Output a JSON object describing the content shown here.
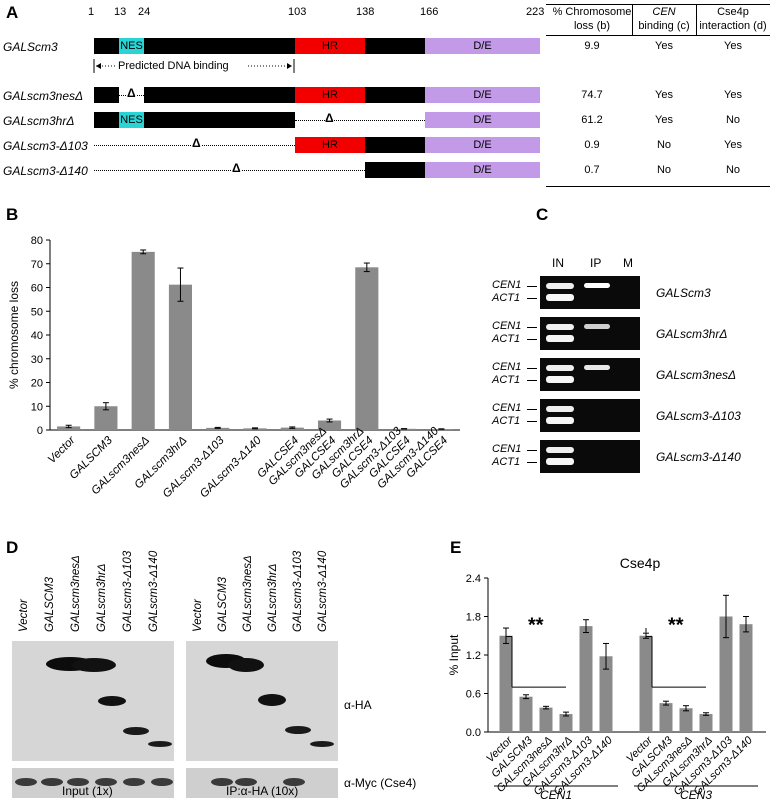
{
  "panels": {
    "a": "A",
    "b": "B",
    "c": "C",
    "d": "D",
    "e": "E"
  },
  "panelA": {
    "positions": [
      "1",
      "13",
      "24",
      "103",
      "138",
      "166",
      "223"
    ],
    "domains": {
      "nes": "NES",
      "hr": "HR",
      "de": "D/E",
      "delta": "Δ"
    },
    "dna_binding_label": "Predicted DNA binding",
    "table_headers": {
      "col1_a": "% Chromosome",
      "col1_b": "loss (b)",
      "col2_a": "CEN",
      "col2_b": "binding (c)",
      "col3_a": "Cse4p",
      "col3_b": "interaction (d)"
    },
    "rows": [
      {
        "name": "GALScm3",
        "loss": "9.9",
        "cen": "Yes",
        "cse4": "Yes"
      },
      {
        "name": "GALscm3nesΔ",
        "loss": "74.7",
        "cen": "Yes",
        "cse4": "Yes"
      },
      {
        "name": "GALscm3hrΔ",
        "loss": "61.2",
        "cen": "Yes",
        "cse4": "No"
      },
      {
        "name": "GALscm3-Δ103",
        "loss": "0.9",
        "cen": "No",
        "cse4": "Yes"
      },
      {
        "name": "GALscm3-Δ140",
        "loss": "0.7",
        "cen": "No",
        "cse4": "No"
      }
    ]
  },
  "chart_data": [
    {
      "type": "bar",
      "panel": "B",
      "ylabel": "% chromosome loss",
      "ylim": [
        0,
        80
      ],
      "yticks": [
        0,
        10,
        20,
        30,
        40,
        50,
        60,
        70,
        80
      ],
      "categories": [
        "Vector",
        "GALSCM3",
        "GALscm3nesΔ",
        "GALscm3hrΔ",
        "GALscm3-Δ103",
        "GALscm3-Δ140",
        "GALCSE4",
        "GALscm3nesΔ GALCSE4",
        "GALscm3hrΔ GALCSE4",
        "GALscm3-Δ103 GALCSE4",
        "GALscm3-Δ140 GALCSE4"
      ],
      "category_lines": [
        [
          "Vector"
        ],
        [
          "GALSCM3"
        ],
        [
          "GALscm3nesΔ"
        ],
        [
          "GALscm3hrΔ"
        ],
        [
          "GALscm3-Δ103"
        ],
        [
          "GALscm3-Δ140"
        ],
        [
          "GALCSE4"
        ],
        [
          "GALscm3nesΔ",
          "GALCSE4"
        ],
        [
          "GALscm3hrΔ",
          "GALCSE4"
        ],
        [
          "GALscm3-Δ103",
          "GALCSE4"
        ],
        [
          "GALscm3-Δ140",
          "GALCSE4"
        ]
      ],
      "values": [
        1.5,
        10.0,
        75.0,
        61.2,
        0.9,
        0.7,
        1.0,
        4.0,
        68.5,
        0.5,
        0.4
      ],
      "errors": [
        0.5,
        1.5,
        0.8,
        7.0,
        0.2,
        0.2,
        0.3,
        0.6,
        1.8,
        0.1,
        0.1
      ]
    },
    {
      "type": "bar",
      "panel": "E",
      "title": "Cse4p",
      "ylabel": "% Input",
      "ylim": [
        0,
        2.4
      ],
      "yticks": [
        0.0,
        0.6,
        1.2,
        1.8,
        2.4
      ],
      "ytick_labels": [
        "0.0",
        "0.6",
        "1.2",
        "1.8",
        "2.4"
      ],
      "categories": [
        "Vector",
        "GALSCM3",
        "GALscm3nesΔ",
        "GALscm3hrΔ",
        "GALscm3-Δ103",
        "GALscm3-Δ140"
      ],
      "groups": [
        "CEN1",
        "CEN3"
      ],
      "series": [
        {
          "group": "CEN1",
          "values": [
            1.5,
            0.55,
            0.38,
            0.28,
            1.65,
            1.18
          ],
          "errors": [
            0.12,
            0.03,
            0.02,
            0.03,
            0.1,
            0.2
          ]
        },
        {
          "group": "CEN3",
          "values": [
            1.5,
            0.45,
            0.37,
            0.28,
            1.8,
            1.68
          ],
          "errors": [
            0.04,
            0.03,
            0.04,
            0.02,
            0.33,
            0.12
          ]
        }
      ],
      "significance": "**"
    }
  ],
  "panelC": {
    "lanes": [
      "IN",
      "IP",
      "M"
    ],
    "band_labels": [
      "CEN1",
      "ACT1"
    ],
    "rows": [
      "GALScm3",
      "GALscm3hrΔ",
      "GALscm3nesΔ",
      "GALscm3-Δ103",
      "GALscm3-Δ140"
    ]
  },
  "panelD": {
    "lanes": [
      "Vector",
      "GALSCM3",
      "GALscm3nesΔ",
      "GALscm3hrΔ",
      "GALscm3-Δ103",
      "GALscm3-Δ140"
    ],
    "antibody_ha": "α-HA",
    "antibody_myc": "α-Myc (Cse4)",
    "caption_input": "Input (1x)",
    "caption_ip": "IP:α-HA (10x)"
  }
}
